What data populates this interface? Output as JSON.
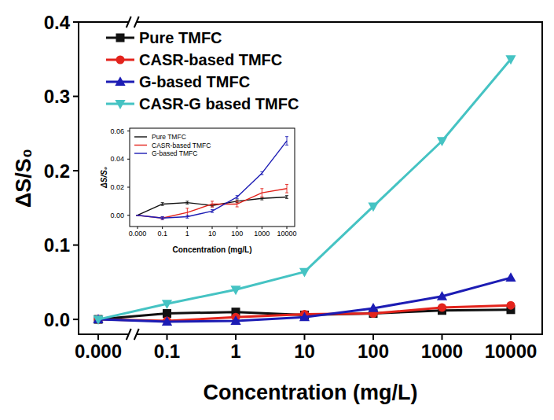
{
  "chart_data": [
    {
      "type": "line",
      "x_label": "Concentration (mg/L)",
      "y_label": "ΔS/S₀",
      "categories": [
        "0.000",
        "0.1",
        "1",
        "10",
        "100",
        "1000",
        "10000"
      ],
      "series": [
        {
          "name": "Pure TMFC",
          "color": "#111111",
          "marker": "square",
          "values": [
            0,
            0.008,
            0.01,
            0.006,
            0.008,
            0.012,
            0.013
          ]
        },
        {
          "name": "CASR-based TMFC",
          "color": "#e3231c",
          "marker": "circle",
          "values": [
            0,
            -0.002,
            0.003,
            0.007,
            0.008,
            0.016,
            0.019
          ]
        },
        {
          "name": "G-based TMFC",
          "color": "#1c1cb4",
          "marker": "triangle-up",
          "values": [
            0,
            -0.003,
            -0.002,
            0.003,
            0.015,
            0.031,
            0.056
          ]
        },
        {
          "name": "CASR-G based TMFC",
          "color": "#45c3c3",
          "marker": "triangle-down",
          "values": [
            0,
            0.021,
            0.04,
            0.064,
            0.152,
            0.24,
            0.35
          ]
        }
      ],
      "ylim": [
        -0.02,
        0.4
      ],
      "yticks": [
        {
          "value": 0,
          "label": "0.0"
        },
        0.1,
        0.2,
        0.3,
        0.4
      ],
      "legend": "upper left"
    },
    {
      "type": "line",
      "x_label": "Concentration (mg/L)",
      "y_label": "ΔS/S₀",
      "categories": [
        "0.000",
        "0.1",
        "1",
        "10",
        "100",
        "1000",
        "10000"
      ],
      "series": [
        {
          "name": "Pure TMFC",
          "color": "#111111",
          "values": [
            0,
            0.008,
            0.009,
            0.007,
            0.01,
            0.012,
            0.013
          ],
          "errors": [
            0,
            0.001,
            0.001,
            0.001,
            0.001,
            0.001,
            0.001
          ]
        },
        {
          "name": "CASR-based TMFC",
          "color": "#e3231c",
          "values": [
            0,
            -0.002,
            0.002,
            0.008,
            0.008,
            0.016,
            0.019
          ],
          "errors": [
            0,
            0.001,
            0.003,
            0.002,
            0.002,
            0.003,
            0.003
          ]
        },
        {
          "name": "G-based TMFC",
          "color": "#1c1cb4",
          "values": [
            0,
            -0.002,
            -0.001,
            0.003,
            0.013,
            0.03,
            0.053
          ],
          "errors": [
            0,
            0.001,
            0.001,
            0.001,
            0.001,
            0.001,
            0.003
          ]
        }
      ],
      "ylim": [
        -0.008,
        0.062
      ],
      "yticks": [
        {
          "value": 0,
          "label": "0.00"
        },
        {
          "value": 0.02,
          "label": "0.02"
        },
        {
          "value": 0.04,
          "label": "0.04"
        },
        {
          "value": 0.06,
          "label": "0.06"
        }
      ],
      "legend": "upper left"
    }
  ]
}
